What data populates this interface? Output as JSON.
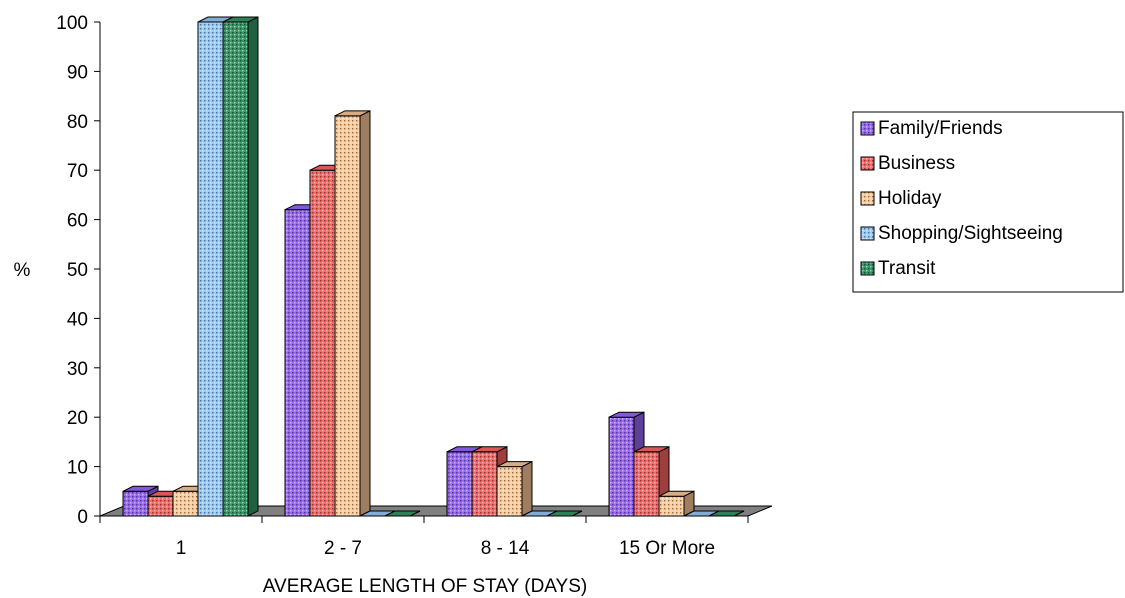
{
  "chart_data": {
    "type": "bar",
    "variant": "3d-clustered-column",
    "categories": [
      "1",
      "2 - 7",
      "8 - 14",
      "15 Or More"
    ],
    "series": [
      {
        "name": "Family/Friends",
        "values": [
          5,
          62,
          13,
          20
        ]
      },
      {
        "name": "Business",
        "values": [
          4,
          70,
          13,
          13
        ]
      },
      {
        "name": "Holiday",
        "values": [
          5,
          81,
          10,
          4
        ]
      },
      {
        "name": "Shopping/Sightseeing",
        "values": [
          100,
          0,
          0,
          0
        ]
      },
      {
        "name": "Transit",
        "values": [
          100,
          0,
          0,
          0
        ]
      }
    ],
    "xlabel": "AVERAGE LENGTH OF STAY (DAYS)",
    "ylabel": "%",
    "ylim": [
      0,
      100
    ],
    "yticks": [
      0,
      10,
      20,
      30,
      40,
      50,
      60,
      70,
      80,
      90,
      100
    ],
    "grid": false,
    "legend": "right",
    "colors": {
      "Family/Friends": "#9966ff",
      "Business": "#ff6666",
      "Holiday": "#ffcc99",
      "Shopping/Sightseeing": "#99ccff",
      "Transit": "#339966",
      "floor": "#808080"
    }
  }
}
